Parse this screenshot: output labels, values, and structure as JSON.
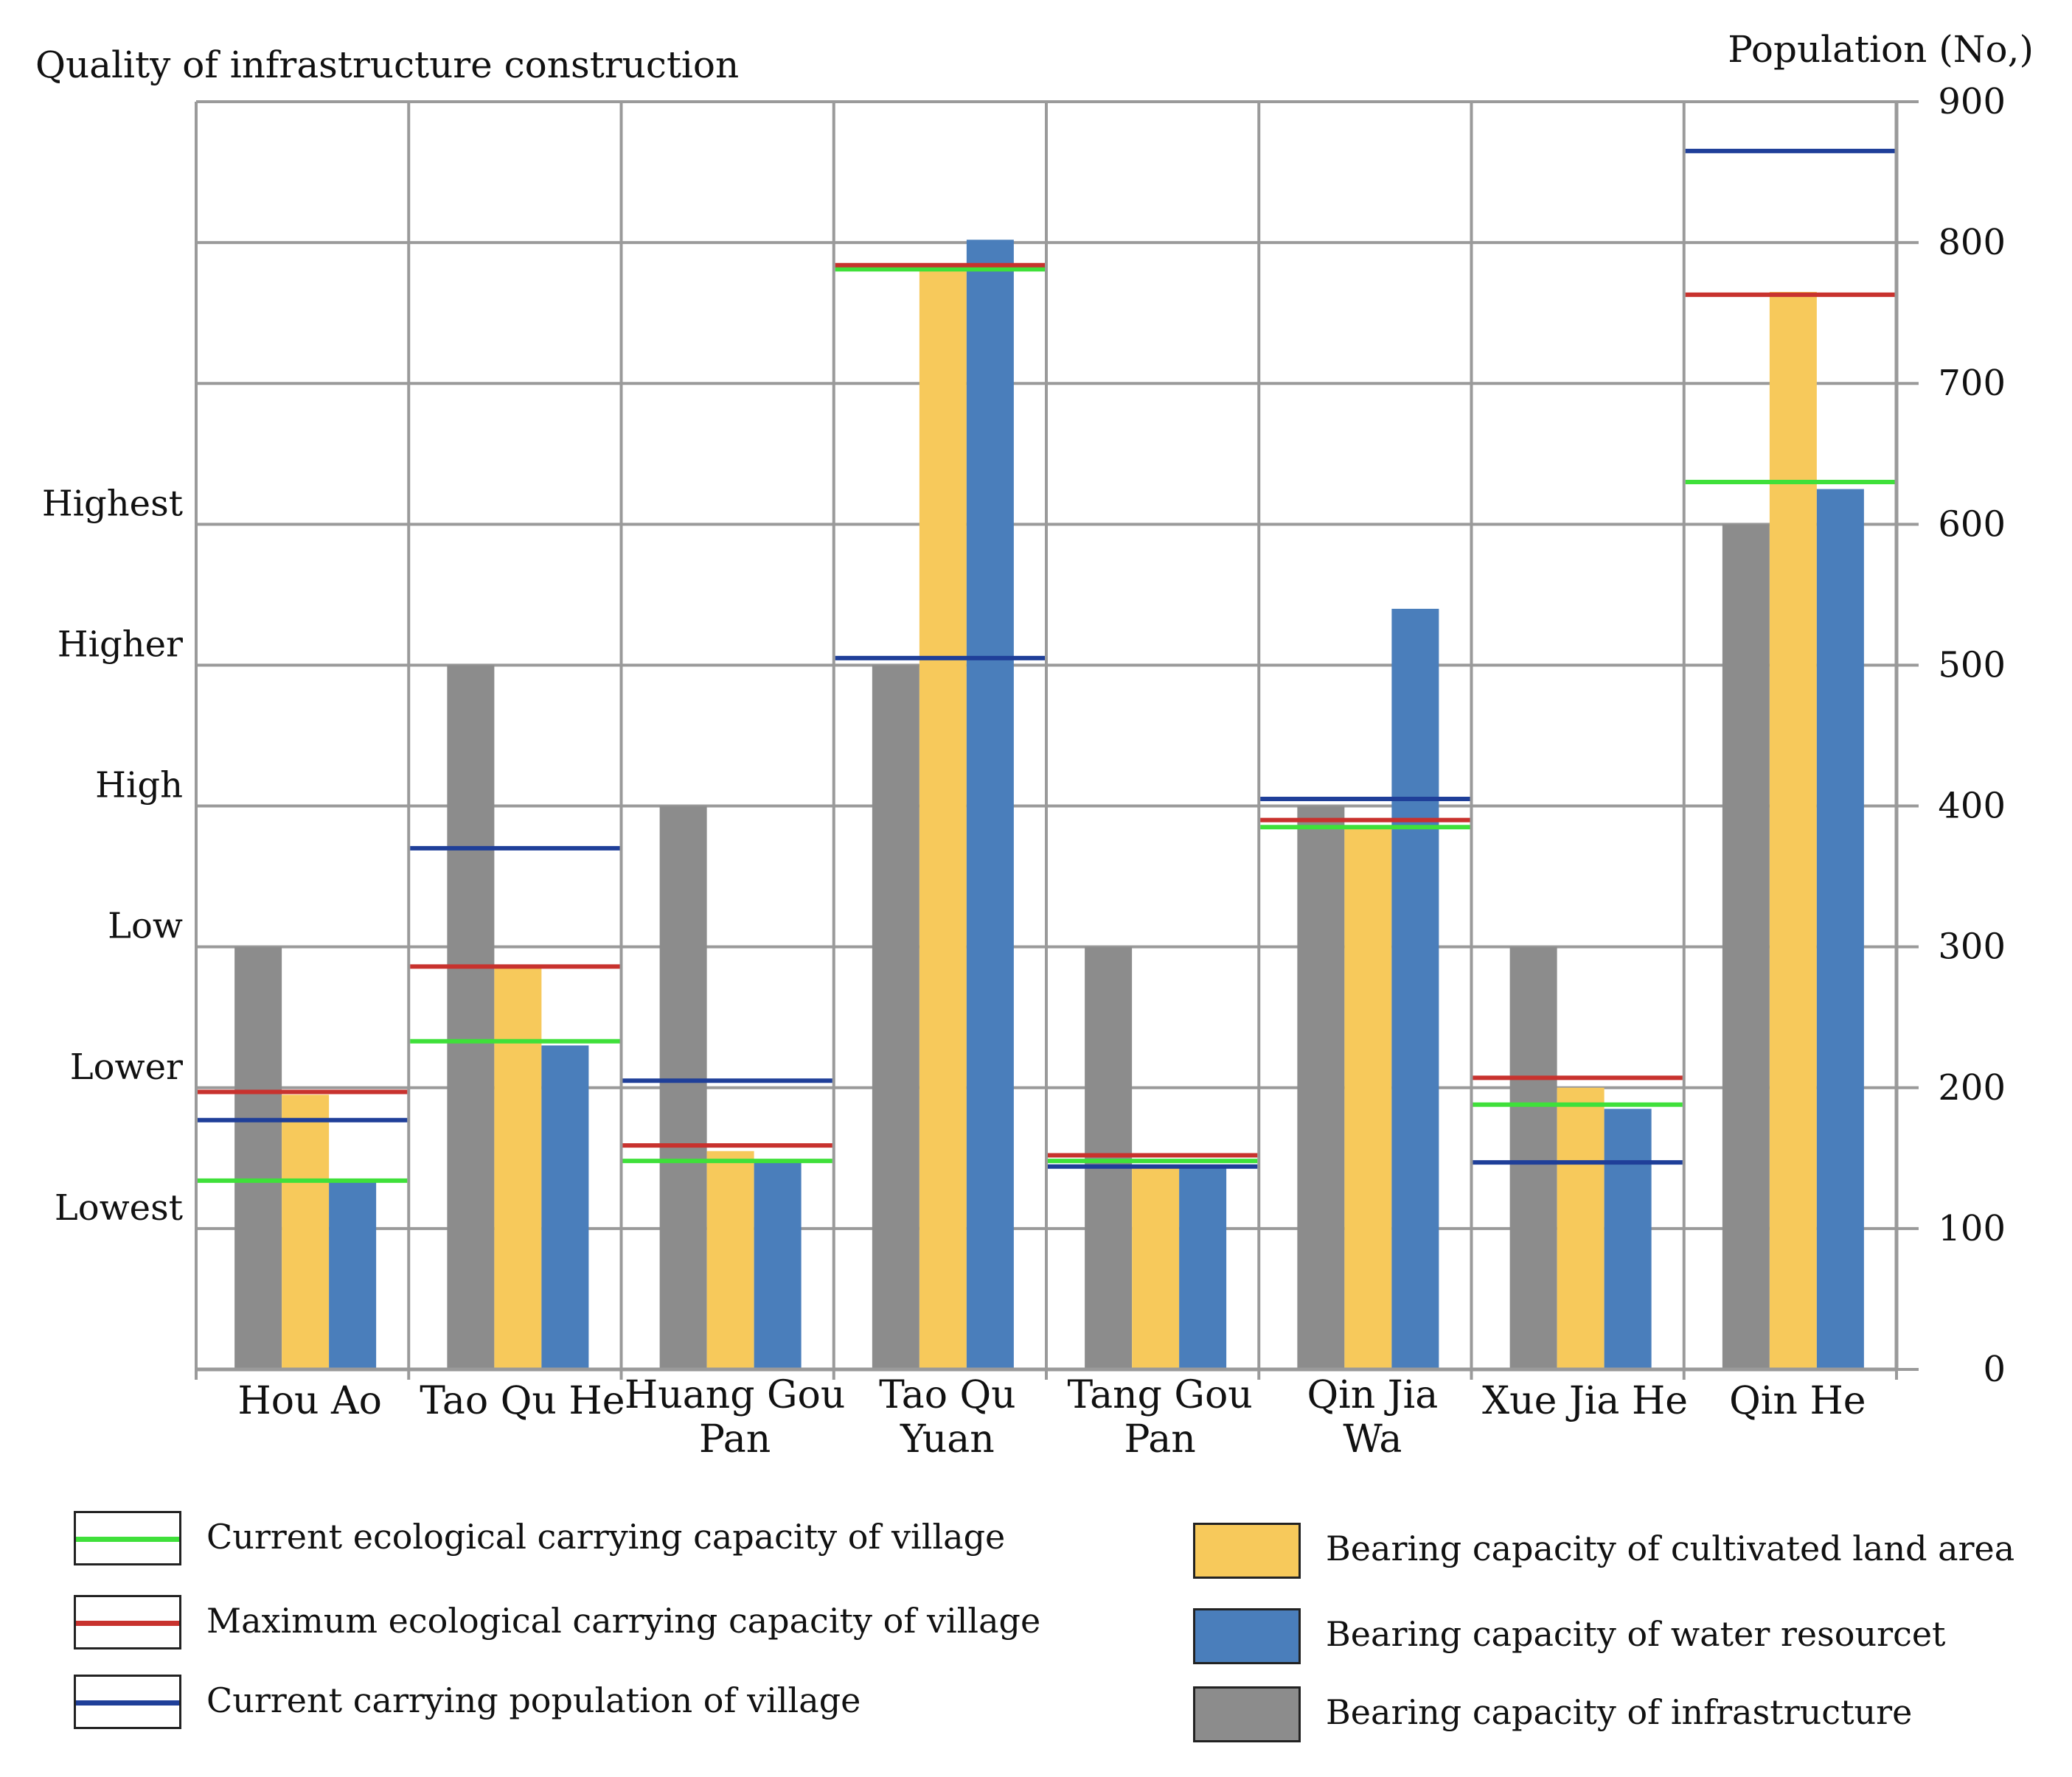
{
  "chart_data": {
    "type": "bar",
    "left_axis_title": "Quality of infrastructure construction",
    "right_axis_title": "Population (No,)",
    "left_tick_labels": [
      "Lowest",
      "Lower",
      "Low",
      "High",
      "Higher",
      "Highest"
    ],
    "left_tick_values": [
      100,
      200,
      300,
      400,
      500,
      600
    ],
    "right_ticks": [
      0,
      100,
      200,
      300,
      400,
      500,
      600,
      700,
      800,
      900
    ],
    "ylim": [
      0,
      900
    ],
    "categories": [
      {
        "line1": "Hou Ao",
        "line2": ""
      },
      {
        "line1": "Tao Qu He",
        "line2": ""
      },
      {
        "line1": "Huang Gou",
        "line2": "Pan"
      },
      {
        "line1": "Tao Qu",
        "line2": "Yuan"
      },
      {
        "line1": "Tang Gou",
        "line2": "Pan"
      },
      {
        "line1": "Qin Jia",
        "line2": "Wa"
      },
      {
        "line1": "Xue Jia He",
        "line2": ""
      },
      {
        "line1": "Qin He",
        "line2": ""
      }
    ],
    "bar_series": [
      {
        "name": "Bearing capacity of infrastructure",
        "color": "#8c8c8c",
        "values": [
          300,
          500,
          400,
          500,
          300,
          400,
          300,
          600
        ]
      },
      {
        "name": "Bearing capacity of cultivated land area",
        "color": "#f7c95b",
        "values": [
          195,
          285,
          155,
          780,
          145,
          385,
          200,
          765
        ]
      },
      {
        "name": "Bearing capacity of water resourcet",
        "color": "#4a7ebb",
        "values": [
          133,
          230,
          148,
          802,
          145,
          540,
          185,
          625
        ]
      }
    ],
    "line_series": [
      {
        "name": "Current ecological carrying capacity of village",
        "color": "#3fe03a",
        "values": [
          134,
          233,
          148,
          781,
          148,
          385,
          188,
          630
        ]
      },
      {
        "name": "Maximum ecological carrying capacity of village",
        "color": "#c8322e",
        "values": [
          197,
          286,
          159,
          784,
          152,
          390,
          207,
          763
        ]
      },
      {
        "name": "Current carrying population of village",
        "color": "#1f3f99",
        "values": [
          177,
          370,
          205,
          505,
          144,
          405,
          147,
          865
        ]
      }
    ]
  },
  "legend": {
    "lines": [
      {
        "label": "Current ecological carrying capacity of village",
        "color": "#3fe03a"
      },
      {
        "label": "Maximum ecological carrying capacity of village",
        "color": "#c8322e"
      },
      {
        "label": "Current carrying population of village",
        "color": "#1f3f99"
      }
    ],
    "boxes": [
      {
        "label": "Bearing capacity of cultivated land area",
        "color": "#f7c95b"
      },
      {
        "label": "Bearing capacity of water resourcet",
        "color": "#4a7ebb"
      },
      {
        "label": "Bearing capacity of infrastructure",
        "color": "#8c8c8c"
      }
    ]
  }
}
